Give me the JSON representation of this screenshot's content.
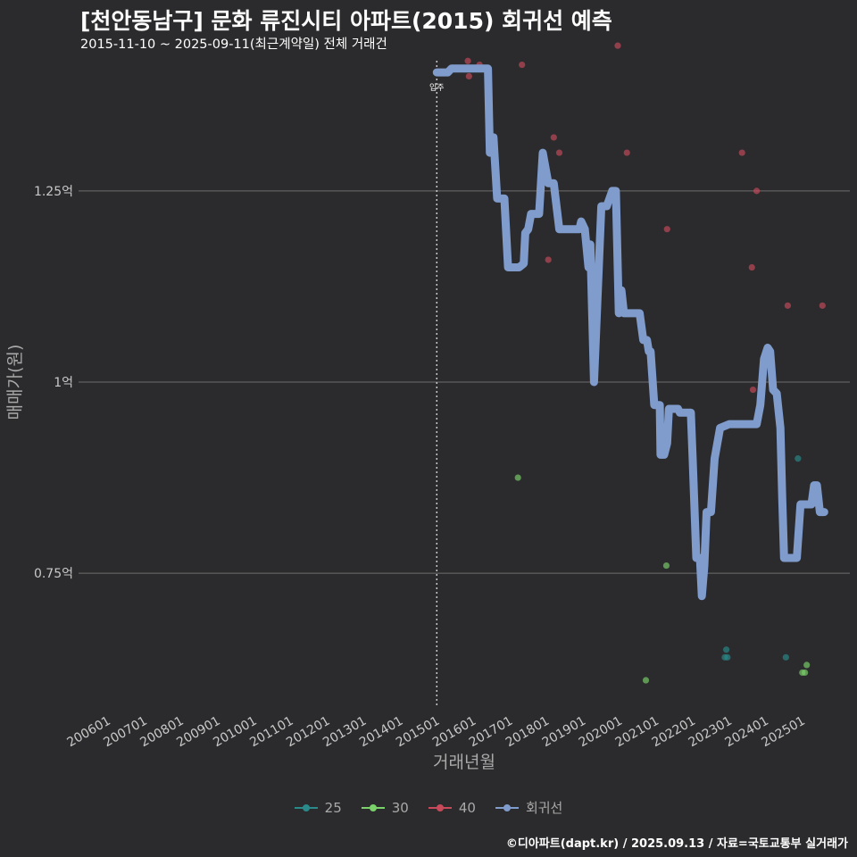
{
  "title": "[천안동남구] 문화 류진시티 아파트(2015) 회귀선 예측",
  "subtitle": "2015-11-10 ~ 2025-09-11(최근계약일) 전체 거래건",
  "footer": "©디아파트(dapt.kr) / 2025.09.13 / 자료=국토교통부 실거래가",
  "colors": {
    "background": "#2b2b2d",
    "grid": "#6e6e6e",
    "axis_text": "#c8c8c8",
    "s25": "#2a8a8a",
    "s30": "#7bd16a",
    "s40": "#c84a5a",
    "regression": "#7f9ccc"
  },
  "chart_data": {
    "type": "scatter",
    "title": "[천안동남구] 문화 류진시티 아파트(2015) 회귀선 예측",
    "xlabel": "거래년월",
    "ylabel": "매매가(원)",
    "x_unit": "year (decimal)",
    "y_unit": "억원",
    "xlim": [
      2005.2,
      2026.3
    ],
    "ylim": [
      0.575,
      1.425
    ],
    "x_ticks": [
      {
        "value": 2006,
        "label": "200601"
      },
      {
        "value": 2007,
        "label": "200701"
      },
      {
        "value": 2008,
        "label": "200801"
      },
      {
        "value": 2009,
        "label": "200901"
      },
      {
        "value": 2010,
        "label": "201001"
      },
      {
        "value": 2011,
        "label": "201101"
      },
      {
        "value": 2012,
        "label": "201201"
      },
      {
        "value": 2013,
        "label": "201301"
      },
      {
        "value": 2014,
        "label": "201401"
      },
      {
        "value": 2015,
        "label": "201501"
      },
      {
        "value": 2016,
        "label": "201601"
      },
      {
        "value": 2017,
        "label": "201701"
      },
      {
        "value": 2018,
        "label": "201801"
      },
      {
        "value": 2019,
        "label": "201901"
      },
      {
        "value": 2020,
        "label": "202001"
      },
      {
        "value": 2021,
        "label": "202101"
      },
      {
        "value": 2022,
        "label": "202201"
      },
      {
        "value": 2023,
        "label": "202301"
      },
      {
        "value": 2024,
        "label": "202401"
      },
      {
        "value": 2025,
        "label": "202501"
      }
    ],
    "y_ticks": [
      {
        "value": 0.75,
        "label": "0.75억"
      },
      {
        "value": 1.0,
        "label": "1억"
      },
      {
        "value": 1.25,
        "label": "1.25억"
      }
    ],
    "vline": {
      "x": 2015.0,
      "label": "입주"
    },
    "legend": [
      "25",
      "30",
      "40",
      "회귀선"
    ],
    "series": [
      {
        "name": "25",
        "points": [
          [
            2022.88,
            0.64
          ],
          [
            2022.92,
            0.65
          ],
          [
            2022.95,
            0.64
          ],
          [
            2024.55,
            0.64
          ],
          [
            2024.88,
            0.9
          ]
        ]
      },
      {
        "name": "30",
        "points": [
          [
            2017.22,
            0.875
          ],
          [
            2020.72,
            0.61
          ],
          [
            2021.28,
            0.76
          ],
          [
            2025.0,
            0.62
          ],
          [
            2025.07,
            0.62
          ],
          [
            2025.12,
            0.63
          ]
        ]
      },
      {
        "name": "40",
        "points": [
          [
            2015.85,
            1.42
          ],
          [
            2015.88,
            1.4
          ],
          [
            2016.17,
            1.415
          ],
          [
            2017.33,
            1.415
          ],
          [
            2018.05,
            1.16
          ],
          [
            2018.2,
            1.32
          ],
          [
            2018.35,
            1.3
          ],
          [
            2019.95,
            1.44
          ],
          [
            2020.2,
            1.3
          ],
          [
            2021.3,
            1.2
          ],
          [
            2023.35,
            1.3
          ],
          [
            2023.62,
            1.15
          ],
          [
            2023.65,
            0.99
          ],
          [
            2023.75,
            1.25
          ],
          [
            2024.6,
            1.1
          ],
          [
            2025.55,
            1.1
          ]
        ]
      },
      {
        "name": "회귀선",
        "points": [
          [
            2015.0,
            1.405
          ],
          [
            2015.3,
            1.405
          ],
          [
            2015.4,
            1.41
          ],
          [
            2016.3,
            1.41
          ],
          [
            2016.4,
            1.41
          ],
          [
            2016.45,
            1.3
          ],
          [
            2016.55,
            1.32
          ],
          [
            2016.65,
            1.24
          ],
          [
            2016.85,
            1.24
          ],
          [
            2016.95,
            1.15
          ],
          [
            2017.25,
            1.15
          ],
          [
            2017.38,
            1.155
          ],
          [
            2017.42,
            1.195
          ],
          [
            2017.5,
            1.2
          ],
          [
            2017.58,
            1.22
          ],
          [
            2017.8,
            1.22
          ],
          [
            2017.9,
            1.3
          ],
          [
            2018.05,
            1.26
          ],
          [
            2018.2,
            1.26
          ],
          [
            2018.35,
            1.2
          ],
          [
            2018.9,
            1.2
          ],
          [
            2018.95,
            1.21
          ],
          [
            2019.05,
            1.2
          ],
          [
            2019.15,
            1.15
          ],
          [
            2019.2,
            1.18
          ],
          [
            2019.3,
            1.0
          ],
          [
            2019.5,
            1.23
          ],
          [
            2019.65,
            1.23
          ],
          [
            2019.8,
            1.25
          ],
          [
            2019.9,
            1.25
          ],
          [
            2019.98,
            1.09
          ],
          [
            2020.05,
            1.12
          ],
          [
            2020.12,
            1.09
          ],
          [
            2020.2,
            1.09
          ],
          [
            2020.55,
            1.09
          ],
          [
            2020.65,
            1.055
          ],
          [
            2020.75,
            1.055
          ],
          [
            2020.8,
            1.04
          ],
          [
            2020.85,
            1.04
          ],
          [
            2020.95,
            0.97
          ],
          [
            2021.1,
            0.97
          ],
          [
            2021.12,
            0.905
          ],
          [
            2021.22,
            0.905
          ],
          [
            2021.3,
            0.92
          ],
          [
            2021.35,
            0.965
          ],
          [
            2021.6,
            0.965
          ],
          [
            2021.65,
            0.96
          ],
          [
            2021.95,
            0.96
          ],
          [
            2022.0,
            0.9
          ],
          [
            2022.1,
            0.77
          ],
          [
            2022.2,
            0.77
          ],
          [
            2022.25,
            0.72
          ],
          [
            2022.32,
            0.76
          ],
          [
            2022.38,
            0.83
          ],
          [
            2022.5,
            0.83
          ],
          [
            2022.6,
            0.9
          ],
          [
            2022.75,
            0.94
          ],
          [
            2023.0,
            0.945
          ],
          [
            2023.55,
            0.945
          ],
          [
            2023.75,
            0.945
          ],
          [
            2023.85,
            0.97
          ],
          [
            2023.95,
            1.03
          ],
          [
            2024.05,
            1.045
          ],
          [
            2024.12,
            1.04
          ],
          [
            2024.2,
            0.99
          ],
          [
            2024.3,
            0.985
          ],
          [
            2024.4,
            0.94
          ],
          [
            2024.45,
            0.85
          ],
          [
            2024.5,
            0.77
          ],
          [
            2024.85,
            0.77
          ],
          [
            2024.95,
            0.84
          ],
          [
            2025.15,
            0.84
          ],
          [
            2025.25,
            0.84
          ],
          [
            2025.32,
            0.865
          ],
          [
            2025.4,
            0.865
          ],
          [
            2025.48,
            0.83
          ],
          [
            2025.6,
            0.83
          ]
        ]
      }
    ]
  }
}
